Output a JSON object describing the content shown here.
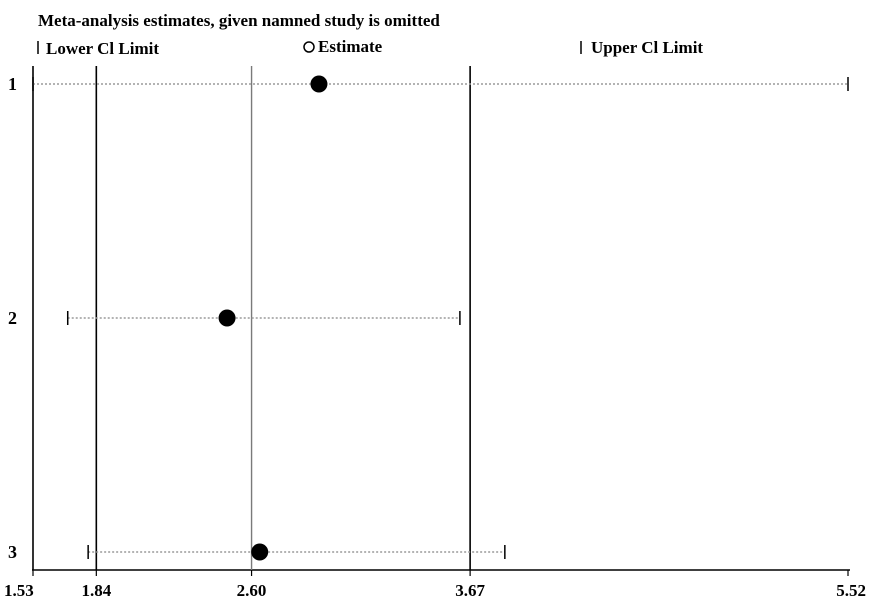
{
  "chart_data": {
    "type": "scatter",
    "title": "Meta-analysis estimates, given namned study is omitted",
    "legend": {
      "placement": "top",
      "lower_label": "Lower Cl Limit",
      "estimate_label": "Estimate",
      "upper_label": "Upper Cl Limit"
    },
    "x_ticks": [
      "1.53",
      "1.84",
      "2.60",
      "3.67",
      "5.52"
    ],
    "xlim": [
      1.53,
      5.52
    ],
    "reference_lines": [
      1.53,
      1.84,
      2.6,
      3.67
    ],
    "rows": [
      {
        "label": "1",
        "lower": 1.53,
        "estimate": 2.93,
        "upper": 5.52
      },
      {
        "label": "2",
        "lower": 1.7,
        "estimate": 2.48,
        "upper": 3.62
      },
      {
        "label": "3",
        "lower": 1.8,
        "estimate": 2.64,
        "upper": 3.84
      }
    ],
    "grid": false,
    "colors": {
      "marker": "#000000",
      "line": "#000000",
      "dotted": "#9a9a9a",
      "center_line": "#7a7a7a"
    }
  }
}
